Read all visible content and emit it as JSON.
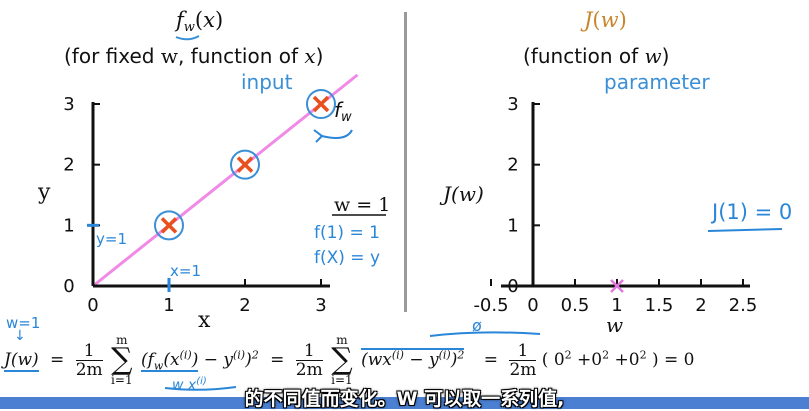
{
  "left_panel": {
    "title": "f_w(x)",
    "subtitle_a": "(for fixed ",
    "subtitle_w": "w",
    "subtitle_b": ", function of ",
    "subtitle_x": "x",
    "subtitle_c": ")",
    "annotation_input": "input",
    "annotation_fw": "f_w",
    "annotation_w_eq_1": "w = 1",
    "annotation_f1": "f(1) = 1",
    "annotation_fx": "f(X) = y",
    "annotation_y1": "y=1",
    "annotation_x1": "x=1"
  },
  "right_panel": {
    "title": "J(w)",
    "subtitle_a": "(function of ",
    "subtitle_w": "w",
    "subtitle_c": ")",
    "annotation_parameter": "parameter",
    "annotation_j1": "J(1) = 0"
  },
  "chart_data": [
    {
      "type": "scatter",
      "title": "f_w(x)",
      "xlabel": "x",
      "ylabel": "y",
      "x_ticks": [
        "0",
        "1",
        "2",
        "3"
      ],
      "y_ticks": [
        "0",
        "1",
        "2",
        "3"
      ],
      "xlim": [
        0,
        3
      ],
      "ylim": [
        0,
        3
      ],
      "points": [
        {
          "x": 1,
          "y": 1
        },
        {
          "x": 2,
          "y": 2
        },
        {
          "x": 3,
          "y": 3
        }
      ],
      "line": {
        "slope": 1,
        "intercept": 0,
        "x_range": [
          0,
          3.5
        ]
      },
      "colors": {
        "points": "#e8501e",
        "line": "#f08ae6",
        "circles": "#3a8fd6"
      }
    },
    {
      "type": "scatter",
      "title": "J(w)",
      "xlabel": "w",
      "ylabel": "J(w)",
      "x_ticks": [
        "-0.5",
        "0",
        "0.5",
        "1",
        "1.5",
        "2",
        "2.5"
      ],
      "y_ticks": [
        "0",
        "1",
        "2",
        "3"
      ],
      "xlim": [
        -0.5,
        2.5
      ],
      "ylim": [
        0,
        3
      ],
      "points": [
        {
          "x": 1,
          "y": 0
        }
      ],
      "colors": {
        "points": "#e07ae0"
      }
    }
  ],
  "equation": {
    "handwritten_w1": "w=1",
    "lhs": "J(w)",
    "eq1_frac_num": "1",
    "eq1_frac_den": "2m",
    "sum_top": "m",
    "sum_bottom": "i=1",
    "term1": "(f_w(x^(i)) − y^(i))^2",
    "handwritten_under": "w x^(i)",
    "eq2_frac_num": "1",
    "eq2_frac_den": "2m",
    "term2": "(wx^(i) − y^(i))^2",
    "handwritten_over": "ø",
    "eq3_frac_num": "1",
    "eq3_frac_den": "2m",
    "term3": "( 0² + 0² + 0² ) = 0"
  },
  "subtitle": "的不同值而变化。W 可以取一系列值,",
  "colors": {
    "blue_annotation": "#3a8fd6",
    "orange_title": "#c8862a",
    "subtitle_bar": "#4a7fd1"
  }
}
